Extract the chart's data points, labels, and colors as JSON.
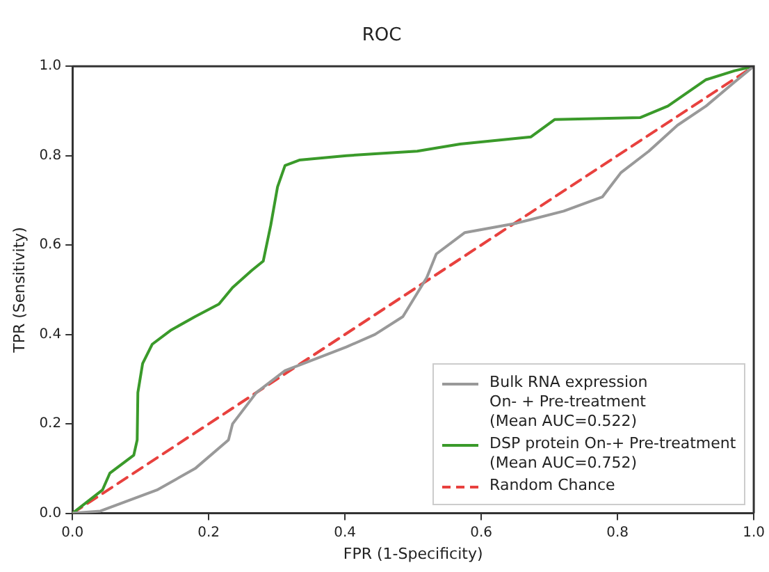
{
  "chart_data": {
    "type": "line",
    "title": "ROC",
    "xlabel": "FPR (1-Specificity)",
    "ylabel": "TPR (Sensitivity)",
    "xlim": [
      0,
      1
    ],
    "ylim": [
      0,
      1
    ],
    "xticks": [
      {
        "value": 0,
        "label": "0.0"
      },
      {
        "value": 0.2,
        "label": "0.2"
      },
      {
        "value": 0.4,
        "label": "0.4"
      },
      {
        "value": 0.6,
        "label": "0.6"
      },
      {
        "value": 0.8,
        "label": "0.8"
      },
      {
        "value": 1,
        "label": "1.0"
      }
    ],
    "yticks": [
      {
        "value": 0,
        "label": "0.0"
      },
      {
        "value": 0.2,
        "label": "0.2"
      },
      {
        "value": 0.4,
        "label": "0.4"
      },
      {
        "value": 0.6,
        "label": "0.6"
      },
      {
        "value": 0.8,
        "label": "0.8"
      },
      {
        "value": 1,
        "label": "1.0"
      }
    ],
    "grid": false,
    "legend": "bottom right",
    "marker": "none",
    "series": [
      {
        "name": "Bulk RNA expression\nOn- + Pre-treatment\n(Mean AUC=0.522)",
        "color": "#999999",
        "line_style": "solid",
        "x": [
          0,
          0.041,
          0.124,
          0.18,
          0.229,
          0.235,
          0.27,
          0.312,
          0.402,
          0.444,
          0.485,
          0.52,
          0.534,
          0.576,
          0.652,
          0.721,
          0.778,
          0.805,
          0.846,
          0.888,
          0.93,
          0.972,
          1
        ],
        "values": [
          0,
          0.005,
          0.052,
          0.1,
          0.164,
          0.2,
          0.27,
          0.319,
          0.372,
          0.4,
          0.44,
          0.527,
          0.58,
          0.628,
          0.649,
          0.676,
          0.708,
          0.762,
          0.81,
          0.868,
          0.911,
          0.965,
          1
        ]
      },
      {
        "name": "DSP protein On-+ Pre-treatment\n(Mean AUC=0.752)",
        "color": "#3a9a2a",
        "line_style": "solid",
        "x": [
          0,
          0.044,
          0.055,
          0.09,
          0.095,
          0.096,
          0.103,
          0.117,
          0.145,
          0.18,
          0.215,
          0.235,
          0.263,
          0.28,
          0.291,
          0.301,
          0.312,
          0.333,
          0.402,
          0.444,
          0.506,
          0.569,
          0.673,
          0.708,
          0.833,
          0.874,
          0.93,
          0.972,
          1
        ],
        "values": [
          0,
          0.052,
          0.09,
          0.13,
          0.164,
          0.27,
          0.335,
          0.378,
          0.41,
          0.44,
          0.468,
          0.505,
          0.543,
          0.564,
          0.644,
          0.73,
          0.778,
          0.79,
          0.8,
          0.804,
          0.81,
          0.826,
          0.842,
          0.881,
          0.885,
          0.911,
          0.97,
          0.99,
          1
        ]
      },
      {
        "name": "Random Chance",
        "color": "#e8413e",
        "line_style": "dashed",
        "x": [
          0,
          1
        ],
        "values": [
          0,
          1
        ]
      }
    ]
  }
}
